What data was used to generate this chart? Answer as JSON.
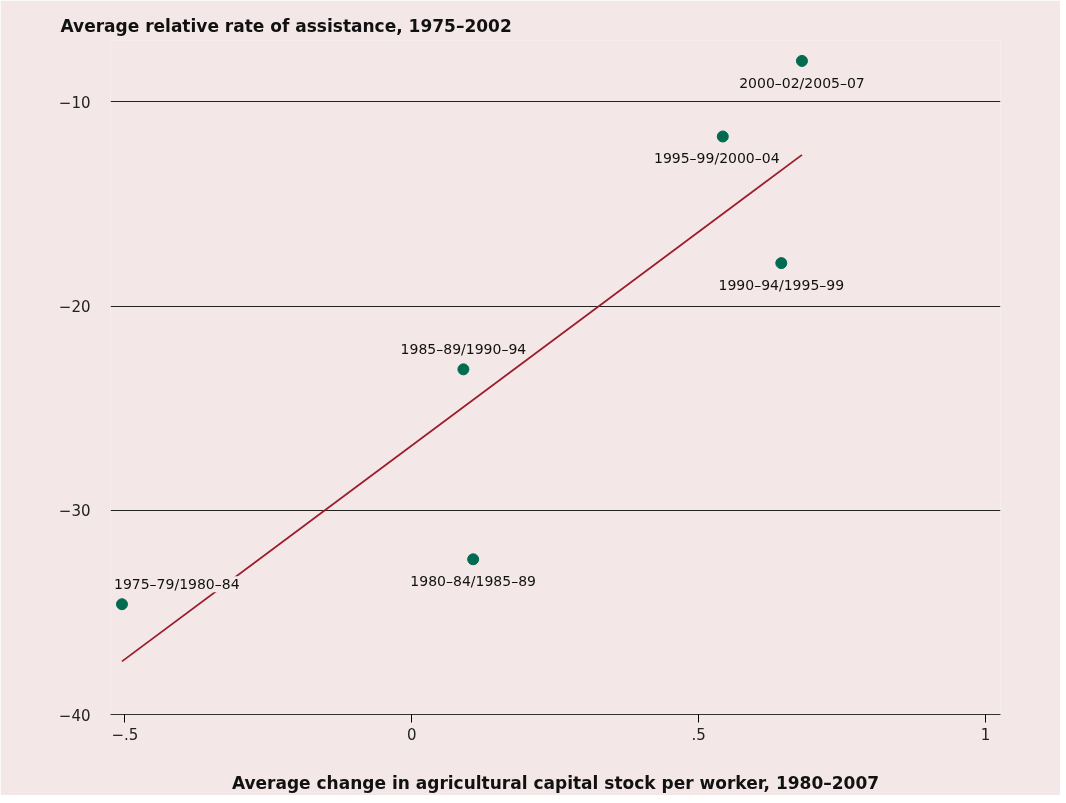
{
  "chart_data": {
    "type": "scatter",
    "xlabel": "Average change in agricultural capital stock per worker, 1980–2007",
    "ylabel": "Average relative rate of assistance, 1975–2002",
    "xlim": [
      -0.525,
      1.026
    ],
    "ylim": [
      -40,
      -7
    ],
    "xticks": [
      {
        "value": -0.5,
        "label": "−.5"
      },
      0,
      {
        "value": 0.5,
        "label": ".5"
      },
      1
    ],
    "yticks": [
      {
        "value": -40,
        "label": "−40"
      },
      {
        "value": -30,
        "label": "−30"
      },
      {
        "value": -20,
        "label": "−20"
      },
      {
        "value": -10,
        "label": "−10"
      }
    ],
    "grid": "y",
    "series": [
      {
        "marker": "circle",
        "color": "#006b4f",
        "x": [
          -0.505,
          0.107,
          0.09,
          0.644,
          0.542,
          0.68
        ],
        "values": [
          -34.6,
          -32.4,
          -23.1,
          -17.9,
          -11.7,
          -8.0
        ]
      },
      {
        "type": "line",
        "marker": "none",
        "color": "#9b1c2b",
        "x": [
          -0.505,
          0.68
        ],
        "values": [
          -37.4,
          -12.6
        ]
      }
    ],
    "annotations": [
      {
        "text": "1975–79/1980–84",
        "x": -0.505,
        "y": -34.6
      },
      {
        "text": "1980–84/1985–89",
        "x": 0.107,
        "y": -32.4
      },
      {
        "text": "1985–89/1990–94",
        "x": 0.09,
        "y": -23.1
      },
      {
        "text": "1990–94/1995–99",
        "x": 0.644,
        "y": -17.9
      },
      {
        "text": "1995–99/2000–04",
        "x": 0.542,
        "y": -11.7
      },
      {
        "text": "2000–02/2005–07",
        "x": 0.68,
        "y": -8.0
      }
    ]
  }
}
